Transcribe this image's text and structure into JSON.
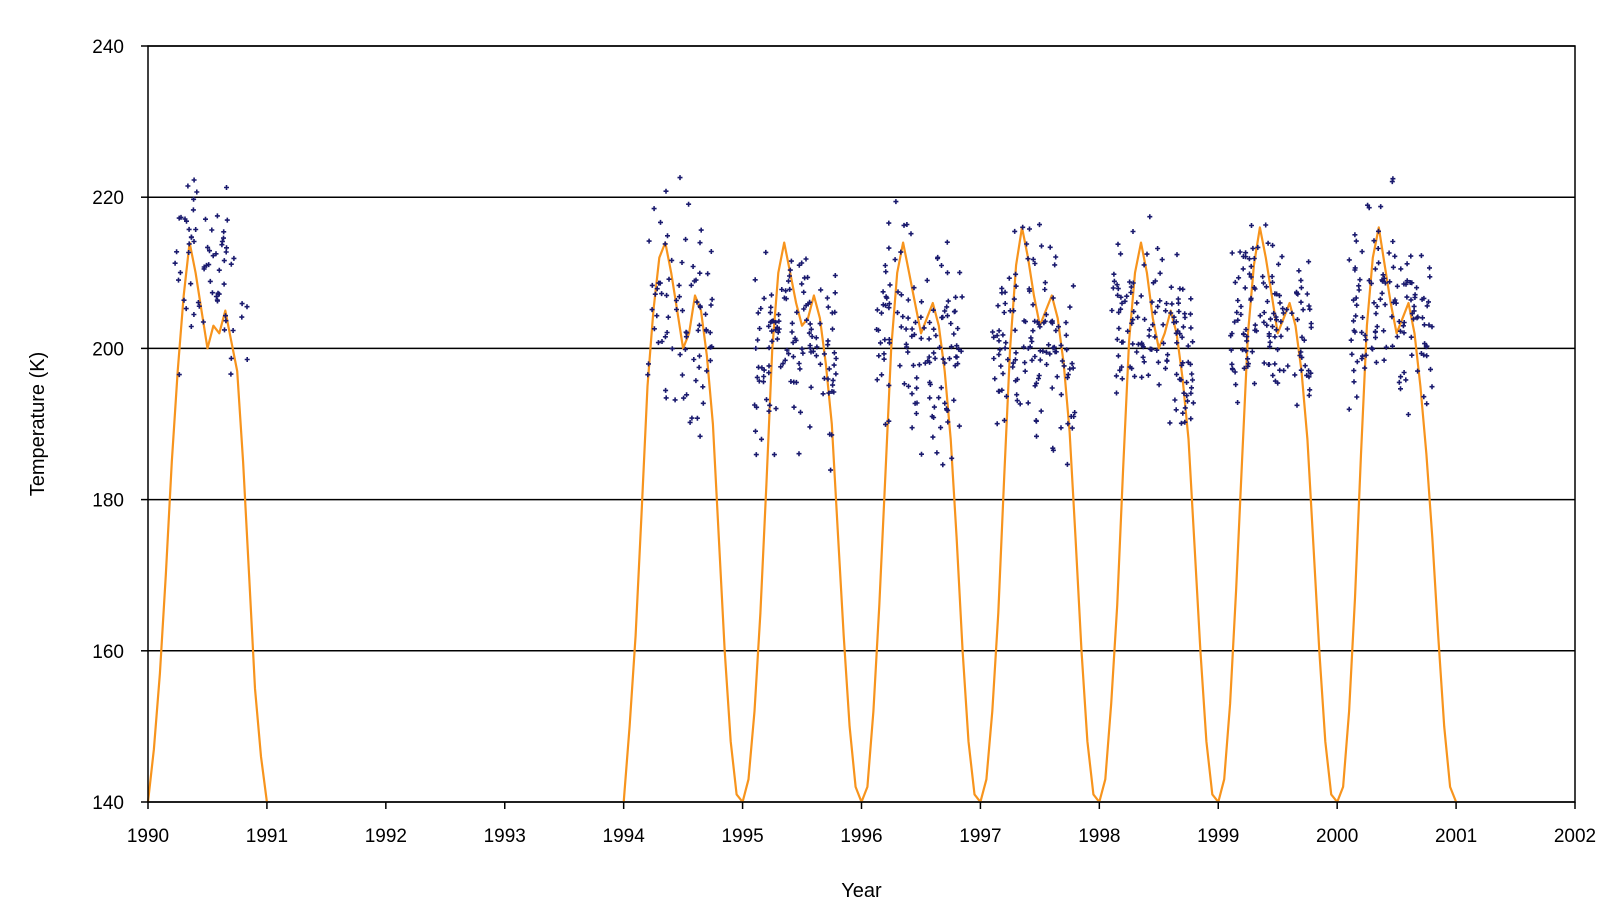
{
  "chart_data": {
    "type": "scatter",
    "title": "",
    "xlabel": "Year",
    "ylabel": "Temperature (K)",
    "xlim": [
      1990,
      2002
    ],
    "ylim": [
      140,
      240
    ],
    "x_ticks": [
      1990,
      1991,
      1992,
      1993,
      1994,
      1995,
      1996,
      1997,
      1998,
      1999,
      2000,
      2001,
      2002
    ],
    "y_ticks": [
      140,
      160,
      180,
      200,
      220,
      240
    ],
    "grid": "horizontal",
    "legend": "none",
    "colors": {
      "line": "#f7941d",
      "points": "#1a1a6e",
      "grid": "#000000"
    },
    "series": [
      {
        "kind": "line",
        "segments": [
          [
            [
              1990.0,
              140
            ],
            [
              1990.05,
              147
            ],
            [
              1990.1,
              157
            ],
            [
              1990.15,
              170
            ],
            [
              1990.2,
              185
            ],
            [
              1990.25,
              197
            ],
            [
              1990.3,
              207
            ],
            [
              1990.35,
              214
            ],
            [
              1990.4,
              210
            ],
            [
              1990.45,
              205
            ],
            [
              1990.5,
              200
            ],
            [
              1990.55,
              203
            ],
            [
              1990.6,
              202
            ],
            [
              1990.65,
              205
            ],
            [
              1990.7,
              201
            ],
            [
              1990.75,
              197
            ],
            [
              1990.8,
              185
            ],
            [
              1990.85,
              170
            ],
            [
              1990.9,
              155
            ],
            [
              1990.95,
              146
            ],
            [
              1991.0,
              140
            ]
          ],
          [
            [
              1994.0,
              140
            ],
            [
              1994.05,
              150
            ],
            [
              1994.1,
              162
            ],
            [
              1994.15,
              178
            ],
            [
              1994.2,
              195
            ],
            [
              1994.25,
              205
            ],
            [
              1994.3,
              212
            ],
            [
              1994.35,
              214
            ],
            [
              1994.4,
              210
            ],
            [
              1994.45,
              205
            ],
            [
              1994.5,
              200
            ],
            [
              1994.55,
              202
            ],
            [
              1994.6,
              207
            ],
            [
              1994.65,
              205
            ],
            [
              1994.7,
              199
            ],
            [
              1994.75,
              190
            ],
            [
              1994.8,
              175
            ],
            [
              1994.85,
              160
            ],
            [
              1994.9,
              148
            ],
            [
              1994.95,
              141
            ],
            [
              1995.0,
              140
            ],
            [
              1995.05,
              143
            ],
            [
              1995.1,
              152
            ],
            [
              1995.15,
              165
            ],
            [
              1995.2,
              182
            ],
            [
              1995.25,
              200
            ],
            [
              1995.3,
              210
            ],
            [
              1995.35,
              214
            ],
            [
              1995.4,
              210
            ],
            [
              1995.45,
              206
            ],
            [
              1995.5,
              203
            ],
            [
              1995.55,
              204
            ],
            [
              1995.6,
              207
            ],
            [
              1995.65,
              204
            ],
            [
              1995.7,
              198
            ],
            [
              1995.75,
              190
            ],
            [
              1995.8,
              176
            ],
            [
              1995.85,
              162
            ],
            [
              1995.9,
              150
            ],
            [
              1995.95,
              142
            ],
            [
              1996.0,
              140
            ],
            [
              1996.05,
              142
            ],
            [
              1996.1,
              152
            ],
            [
              1996.15,
              166
            ],
            [
              1996.2,
              183
            ],
            [
              1996.25,
              200
            ],
            [
              1996.3,
              210
            ],
            [
              1996.35,
              214
            ],
            [
              1996.4,
              210
            ],
            [
              1996.45,
              206
            ],
            [
              1996.5,
              202
            ],
            [
              1996.55,
              204
            ],
            [
              1996.6,
              206
            ],
            [
              1996.65,
              203
            ],
            [
              1996.7,
              197
            ],
            [
              1996.75,
              188
            ],
            [
              1996.8,
              175
            ],
            [
              1996.85,
              160
            ],
            [
              1996.9,
              148
            ],
            [
              1996.95,
              141
            ],
            [
              1997.0,
              140
            ],
            [
              1997.05,
              143
            ],
            [
              1997.1,
              152
            ],
            [
              1997.15,
              165
            ],
            [
              1997.2,
              183
            ],
            [
              1997.25,
              200
            ],
            [
              1997.3,
              211
            ],
            [
              1997.35,
              216
            ],
            [
              1997.4,
              212
            ],
            [
              1997.45,
              207
            ],
            [
              1997.5,
              203
            ],
            [
              1997.55,
              205
            ],
            [
              1997.6,
              207
            ],
            [
              1997.65,
              204
            ],
            [
              1997.7,
              198
            ],
            [
              1997.75,
              189
            ],
            [
              1997.8,
              175
            ],
            [
              1997.85,
              160
            ],
            [
              1997.9,
              148
            ],
            [
              1997.95,
              141
            ],
            [
              1998.0,
              140
            ],
            [
              1998.05,
              143
            ],
            [
              1998.1,
              153
            ],
            [
              1998.15,
              166
            ],
            [
              1998.2,
              184
            ],
            [
              1998.25,
              201
            ],
            [
              1998.3,
              210
            ],
            [
              1998.35,
              214
            ],
            [
              1998.4,
              210
            ],
            [
              1998.45,
              204
            ],
            [
              1998.5,
              200
            ],
            [
              1998.55,
              202
            ],
            [
              1998.6,
              205
            ],
            [
              1998.65,
              202
            ],
            [
              1998.7,
              196
            ],
            [
              1998.75,
              188
            ],
            [
              1998.8,
              174
            ],
            [
              1998.85,
              160
            ],
            [
              1998.9,
              148
            ],
            [
              1998.95,
              141
            ],
            [
              1999.0,
              140
            ],
            [
              1999.05,
              143
            ],
            [
              1999.1,
              153
            ],
            [
              1999.15,
              168
            ],
            [
              1999.2,
              185
            ],
            [
              1999.25,
              202
            ],
            [
              1999.3,
              211
            ],
            [
              1999.35,
              216
            ],
            [
              1999.4,
              212
            ],
            [
              1999.45,
              207
            ],
            [
              1999.5,
              202
            ],
            [
              1999.55,
              204
            ],
            [
              1999.6,
              206
            ],
            [
              1999.65,
              203
            ],
            [
              1999.7,
              197
            ],
            [
              1999.75,
              188
            ],
            [
              1999.8,
              174
            ],
            [
              1999.85,
              160
            ],
            [
              1999.9,
              148
            ],
            [
              1999.95,
              141
            ],
            [
              2000.0,
              140
            ],
            [
              2000.05,
              142
            ],
            [
              2000.1,
              152
            ],
            [
              2000.15,
              167
            ],
            [
              2000.2,
              186
            ],
            [
              2000.25,
              203
            ],
            [
              2000.3,
              212
            ],
            [
              2000.35,
              216
            ],
            [
              2000.4,
              211
            ],
            [
              2000.45,
              206
            ],
            [
              2000.5,
              202
            ],
            [
              2000.55,
              204
            ],
            [
              2000.6,
              206
            ],
            [
              2000.65,
              202
            ],
            [
              2000.7,
              195
            ],
            [
              2000.75,
              186
            ],
            [
              2000.8,
              175
            ],
            [
              2000.85,
              162
            ],
            [
              2000.9,
              150
            ],
            [
              2000.95,
              142
            ],
            [
              2001.0,
              140
            ]
          ]
        ]
      },
      {
        "kind": "scatter",
        "clusters": [
          {
            "start": 1990.2,
            "end": 1990.85,
            "count": 70,
            "peak": 1990.45,
            "center": 212,
            "spread": 8
          },
          {
            "start": 1994.2,
            "end": 1994.75,
            "count": 80,
            "peak": 1994.35,
            "center": 208,
            "spread": 10
          },
          {
            "start": 1995.1,
            "end": 1995.8,
            "count": 130,
            "peak": 1995.4,
            "center": 203,
            "spread": 9
          },
          {
            "start": 1996.1,
            "end": 1996.85,
            "count": 130,
            "peak": 1996.3,
            "center": 205,
            "spread": 9
          },
          {
            "start": 1997.1,
            "end": 1997.8,
            "count": 130,
            "peak": 1997.4,
            "center": 203,
            "spread": 9
          },
          {
            "start": 1998.1,
            "end": 1998.8,
            "count": 130,
            "peak": 1998.35,
            "center": 204,
            "spread": 8
          },
          {
            "start": 1999.1,
            "end": 1999.8,
            "count": 130,
            "peak": 1999.35,
            "center": 206,
            "spread": 8
          },
          {
            "start": 2000.1,
            "end": 2000.8,
            "count": 130,
            "peak": 2000.4,
            "center": 207,
            "spread": 9
          }
        ]
      }
    ]
  }
}
